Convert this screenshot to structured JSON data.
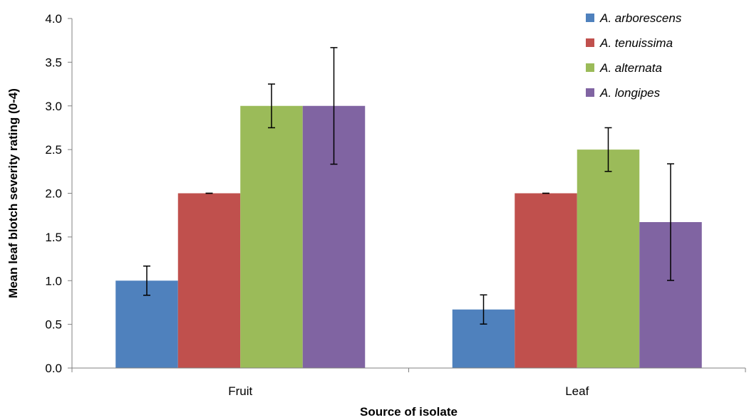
{
  "chart_data": {
    "type": "bar",
    "categories": [
      "Fruit",
      "Leaf"
    ],
    "series": [
      {
        "name": "A. arborescens",
        "color": "#4F81BD",
        "values": [
          1.0,
          0.67
        ],
        "errors": [
          0.167,
          0.167
        ]
      },
      {
        "name": "A. tenuissima",
        "color": "#C0504D",
        "values": [
          2.0,
          2.0
        ],
        "errors": [
          0.0,
          0.0
        ]
      },
      {
        "name": "A. alternata",
        "color": "#9BBB59",
        "values": [
          3.0,
          2.5
        ],
        "errors": [
          0.25,
          0.25
        ]
      },
      {
        "name": "A. longipes",
        "color": "#8064A2",
        "values": [
          3.0,
          1.67
        ],
        "errors": [
          0.667,
          0.667
        ]
      }
    ],
    "title": "",
    "xlabel": "Source of isolate",
    "ylabel": "Mean leaf blotch severity rating (0-4)",
    "ylim": [
      0,
      4.0
    ],
    "yticks": [
      "0.0",
      "0.5",
      "1.0",
      "1.5",
      "2.0",
      "2.5",
      "3.0",
      "3.5",
      "4.0"
    ],
    "grid": false,
    "legend_position": "top-right"
  }
}
